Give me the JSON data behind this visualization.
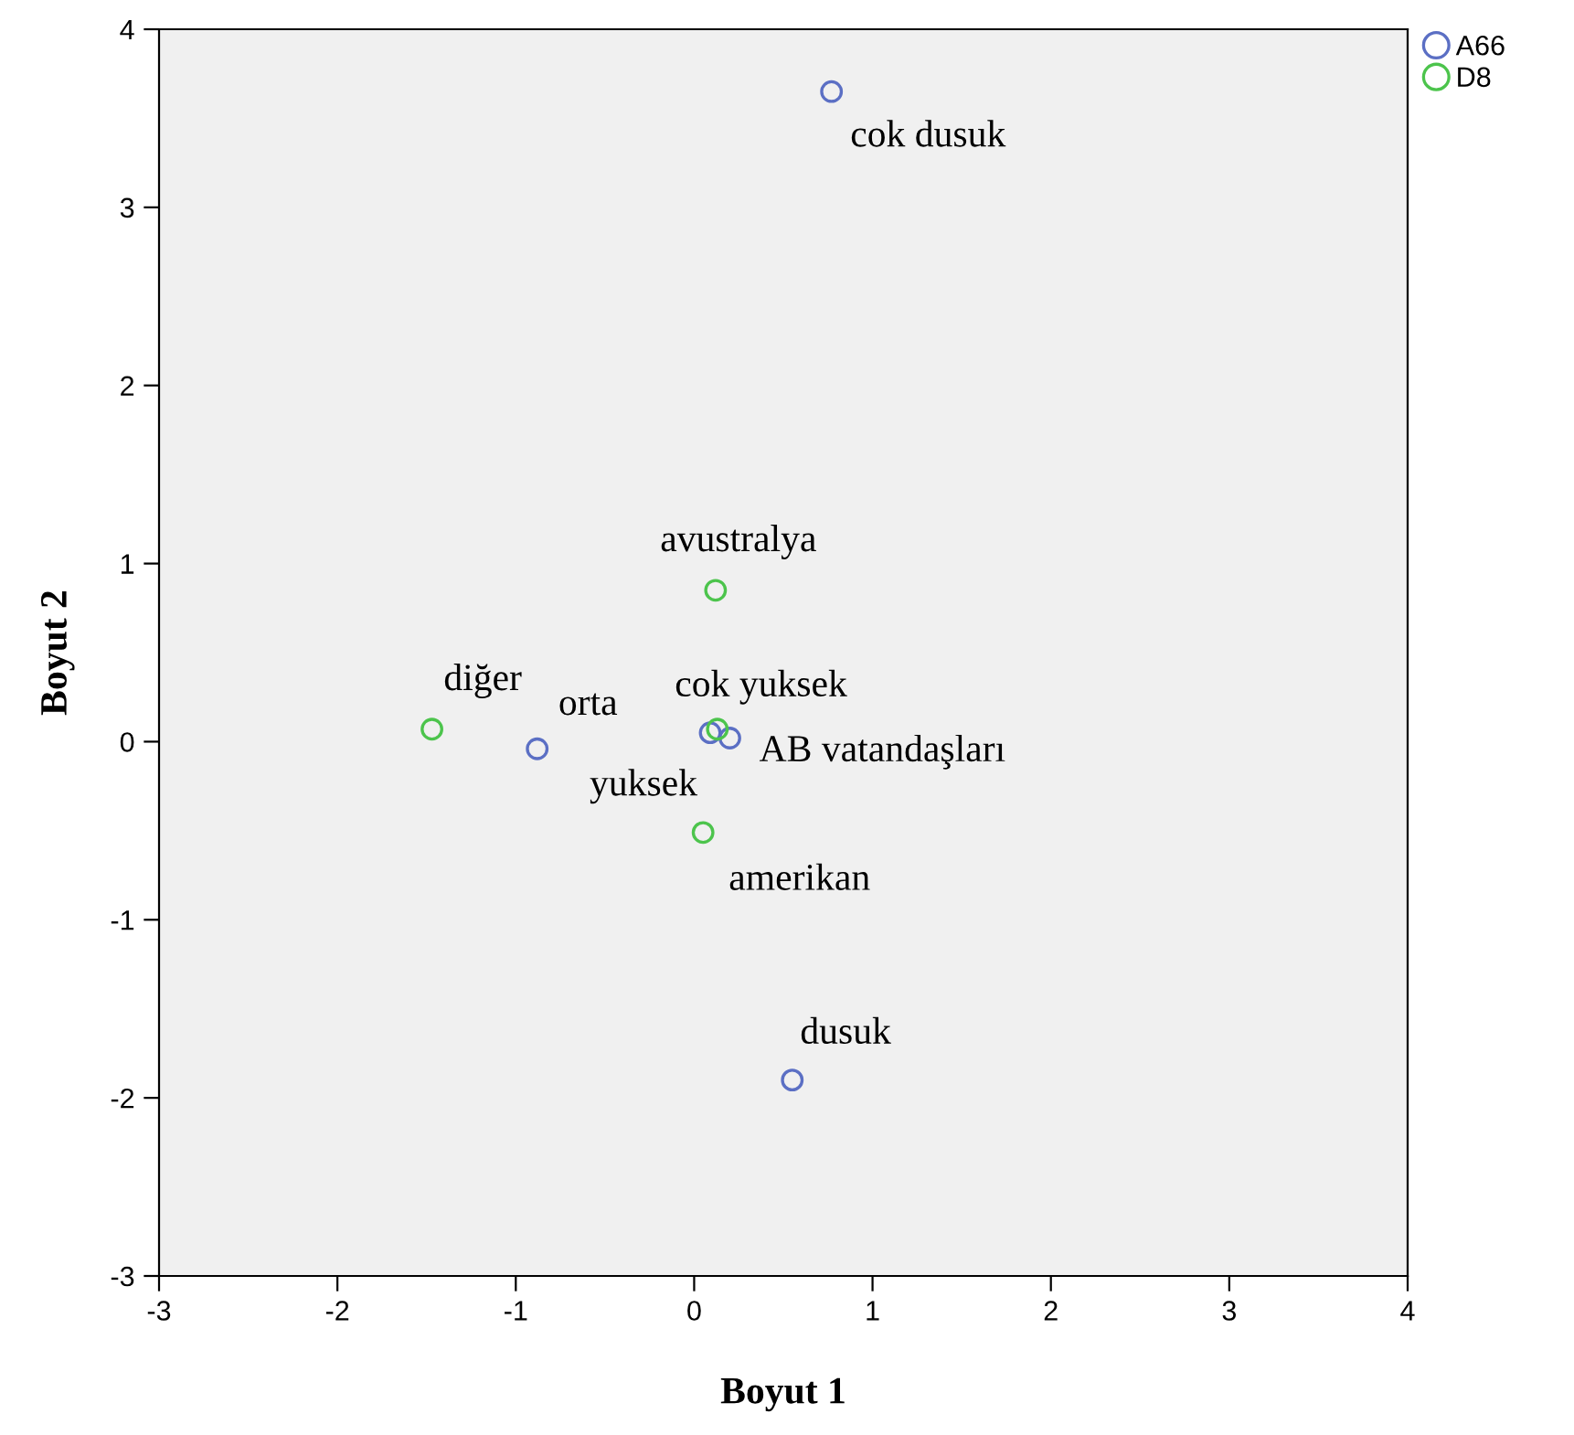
{
  "chart_data": {
    "type": "scatter",
    "xlabel": "Boyut 1",
    "ylabel": "Boyut 2",
    "xlim": [
      -3,
      4
    ],
    "ylim": [
      -3,
      4
    ],
    "xticks": [
      -3,
      -2,
      -1,
      0,
      1,
      2,
      3,
      4
    ],
    "yticks": [
      -3,
      -2,
      -1,
      0,
      1,
      2,
      3,
      4
    ],
    "grid": false,
    "legend": "top right",
    "marker": "circle",
    "series": [
      {
        "name": "A66",
        "color": "#5b6fc4",
        "x": [
          0.77,
          -0.88,
          0.09,
          0.2,
          0.55
        ],
        "values": [
          3.65,
          -0.04,
          0.05,
          0.02,
          -1.9
        ]
      },
      {
        "name": "D8",
        "color": "#4cc44c",
        "x": [
          0.12,
          -1.47,
          0.13,
          0.05
        ],
        "values": [
          0.85,
          0.07,
          0.07,
          -0.51
        ]
      }
    ],
    "annotations": [
      {
        "text": "cok dusuk",
        "x": 0.77,
        "y": 3.65
      },
      {
        "text": "orta",
        "x": -0.88,
        "y": -0.04
      },
      {
        "text": "cok yuksek",
        "x": 0.09,
        "y": 0.05
      },
      {
        "text": "yuksek",
        "x": 0.2,
        "y": 0.02
      },
      {
        "text": "dusuk",
        "x": 0.55,
        "y": -1.9
      },
      {
        "text": "avustralya",
        "x": 0.12,
        "y": 0.85
      },
      {
        "text": "diğer",
        "x": -1.47,
        "y": 0.07
      },
      {
        "text": "AB vatandaşları",
        "x": 0.13,
        "y": 0.07
      },
      {
        "text": "amerikan",
        "x": 0.05,
        "y": -0.51
      }
    ]
  }
}
